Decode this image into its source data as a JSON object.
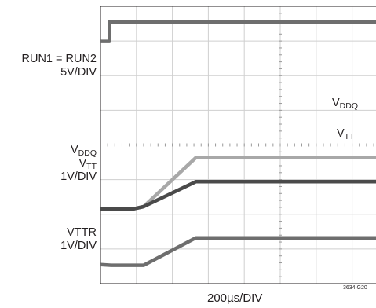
{
  "chart_data": {
    "type": "line",
    "x_scale_label": "200µs/DIV",
    "grid": true,
    "divisions": {
      "x": 10,
      "y": 8
    },
    "labels": {
      "run": {
        "name": "RUN1 = RUN2",
        "scale": "5V/DIV"
      },
      "vddq_left": {
        "main": "V",
        "sub": "DDQ"
      },
      "vtt_left": {
        "main": "V",
        "sub": "TT"
      },
      "vddq_vtt_scale": "1V/DIV",
      "vttr": {
        "name": "VTTR",
        "scale": "1V/DIV"
      },
      "vddq_trace": {
        "main": "V",
        "sub": "DDQ"
      },
      "vtt_trace": {
        "main": "V",
        "sub": "TT"
      }
    },
    "corner_note": "3634 G20",
    "series": [
      {
        "key": "run",
        "color": "#6e6e6e",
        "points": [
          [
            0,
            6.99
          ],
          [
            0.25,
            6.99
          ],
          [
            0.25,
            7.55
          ],
          [
            10,
            7.55
          ]
        ]
      },
      {
        "key": "vddq",
        "color": "#a8a8a8",
        "points": [
          [
            0,
            2.15
          ],
          [
            0.9,
            2.15
          ],
          [
            1.2,
            2.22
          ],
          [
            2.65,
            3.63
          ],
          [
            10,
            3.63
          ]
        ]
      },
      {
        "key": "vtt",
        "color": "#4a4a4a",
        "points": [
          [
            0,
            2.15
          ],
          [
            0.9,
            2.15
          ],
          [
            1.2,
            2.22
          ],
          [
            2.65,
            2.94
          ],
          [
            10,
            2.94
          ]
        ]
      },
      {
        "key": "vttr",
        "color": "#6e6e6e",
        "points": [
          [
            0,
            0.55
          ],
          [
            0.3,
            0.53
          ],
          [
            1.2,
            0.53
          ],
          [
            2.65,
            1.32
          ],
          [
            10,
            1.32
          ]
        ]
      }
    ]
  }
}
